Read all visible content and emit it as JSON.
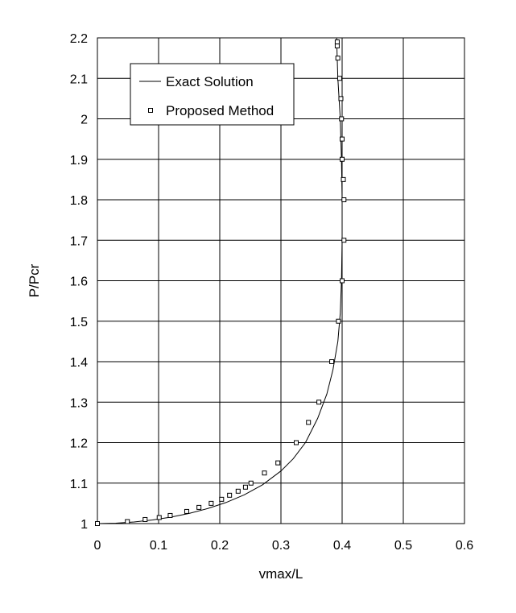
{
  "chart_data": {
    "type": "line",
    "xlabel": "vmax/L",
    "ylabel": "P/Pcr",
    "xlim": [
      0,
      0.6
    ],
    "ylim": [
      1,
      2.2
    ],
    "xticks": [
      "0",
      "0.1",
      "0.2",
      "0.3",
      "0.4",
      "0.5",
      "0.6"
    ],
    "yticks": [
      "1",
      "1.1",
      "1.2",
      "1.3",
      "1.4",
      "1.5",
      "1.6",
      "1.7",
      "1.8",
      "1.9",
      "2",
      "2.1",
      "2.2"
    ],
    "grid": true,
    "legend_position": "top-left",
    "series": [
      {
        "name": "Exact Solution",
        "style": "line",
        "color": "#000000",
        "x": [
          0,
          0.03,
          0.06,
          0.09,
          0.12,
          0.15,
          0.18,
          0.21,
          0.24,
          0.27,
          0.3,
          0.32,
          0.34,
          0.36,
          0.375,
          0.385,
          0.393,
          0.397,
          0.399,
          0.4,
          0.4,
          0.399,
          0.397,
          0.395,
          0.393,
          0.392,
          0.391
        ],
        "y": [
          1.0,
          1.001,
          1.004,
          1.009,
          1.016,
          1.025,
          1.037,
          1.052,
          1.071,
          1.096,
          1.13,
          1.16,
          1.2,
          1.26,
          1.32,
          1.38,
          1.45,
          1.52,
          1.6,
          1.7,
          1.8,
          1.9,
          2.0,
          2.05,
          2.1,
          2.15,
          2.2
        ]
      },
      {
        "name": "Proposed Method",
        "style": "markers",
        "marker": "square",
        "color": "#000000",
        "x": [
          0,
          0.049,
          0.078,
          0.101,
          0.119,
          0.146,
          0.166,
          0.186,
          0.203,
          0.216,
          0.23,
          0.242,
          0.251,
          0.273,
          0.295,
          0.325,
          0.345,
          0.362,
          0.383,
          0.394,
          0.4,
          0.403,
          0.403,
          0.402,
          0.4,
          0.4,
          0.399,
          0.398,
          0.396,
          0.393,
          0.392,
          0.392
        ],
        "y": [
          1.0,
          1.005,
          1.01,
          1.015,
          1.02,
          1.03,
          1.04,
          1.05,
          1.06,
          1.07,
          1.08,
          1.09,
          1.1,
          1.125,
          1.15,
          1.2,
          1.25,
          1.3,
          1.4,
          1.5,
          1.6,
          1.7,
          1.8,
          1.85,
          1.9,
          1.95,
          2.0,
          2.05,
          2.1,
          2.15,
          2.18,
          2.19
        ]
      }
    ]
  }
}
